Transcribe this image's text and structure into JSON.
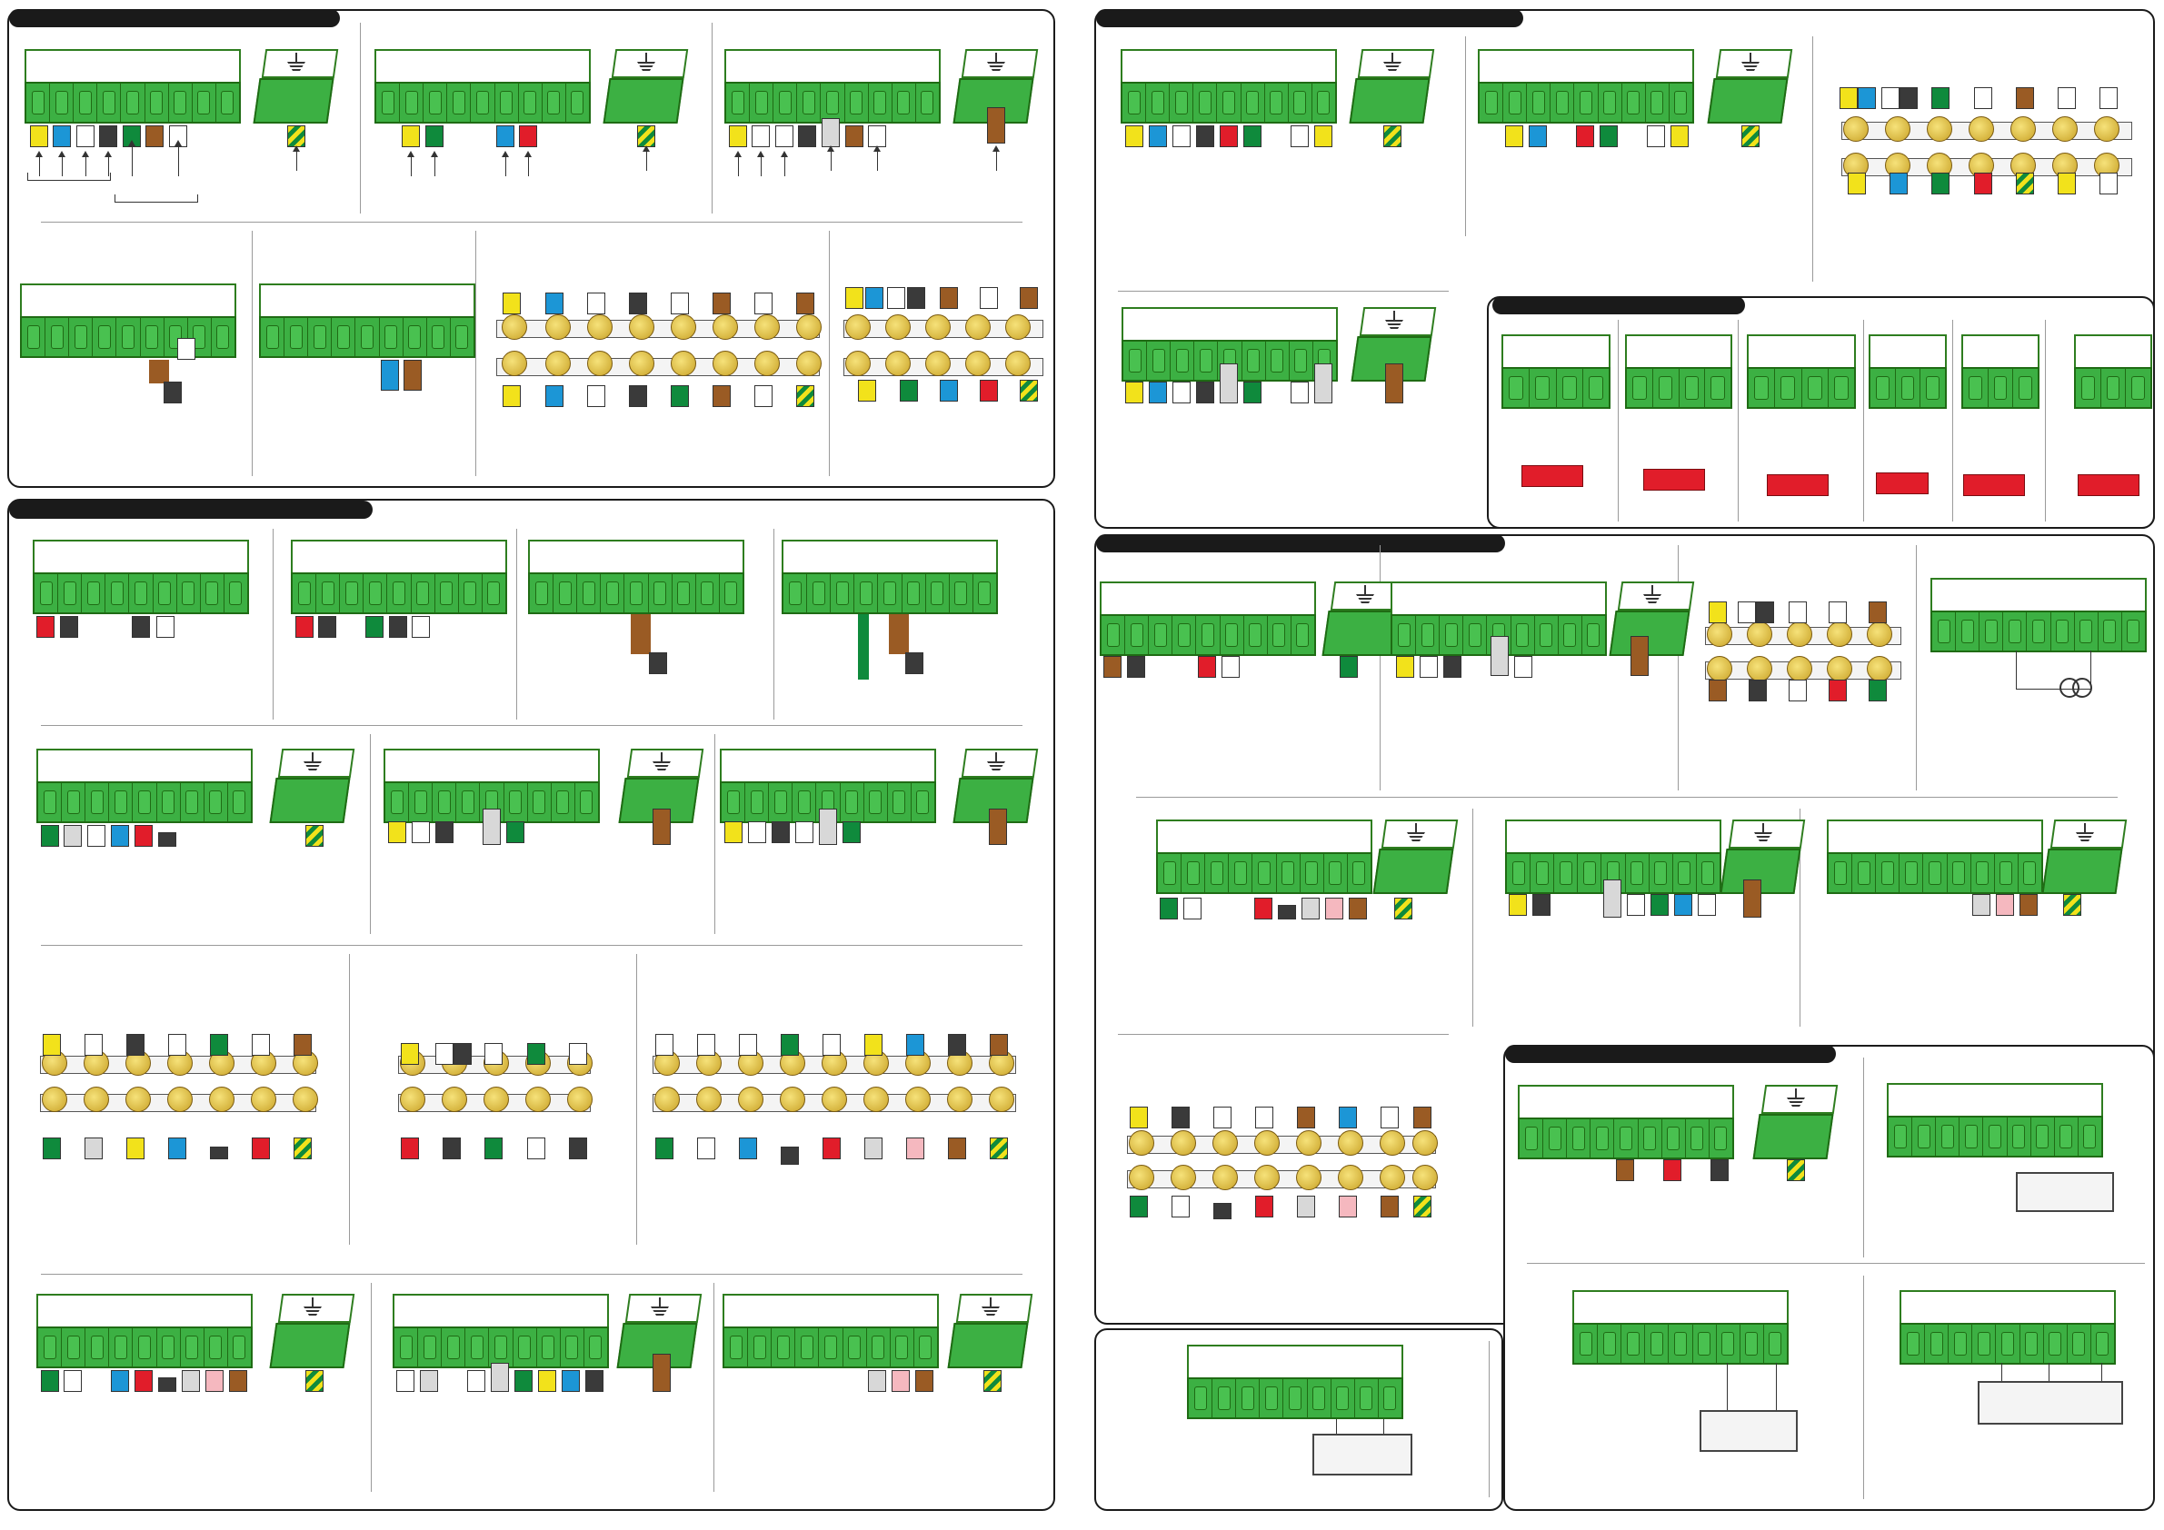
{
  "colors": {
    "terminal_green": "#3cb043",
    "terminal_border": "#1f6b14",
    "header_bar": "#1a1a1a",
    "component_red": "#e11d2a"
  },
  "wire_colors": {
    "yellow": "#f2e21b",
    "blue": "#1c96d6",
    "white": "#ffffff",
    "black": "#3a3a3a",
    "green": "#0f8a3c",
    "brown": "#9a5b24",
    "red": "#e11d2a",
    "grey": "#d8d8d8",
    "pink": "#f5b8bf",
    "yellow_green": "#9acb2a"
  },
  "icons": {
    "ground": "ground-icon",
    "current_source": "current-source-icon",
    "arrow": "arrow-up-icon"
  },
  "panels": [
    {
      "name": "panel-1"
    },
    {
      "name": "panel-2"
    },
    {
      "name": "panel-3"
    },
    {
      "name": "panel-4"
    },
    {
      "name": "panel-5"
    },
    {
      "name": "panel-6"
    },
    {
      "name": "panel-7"
    }
  ]
}
